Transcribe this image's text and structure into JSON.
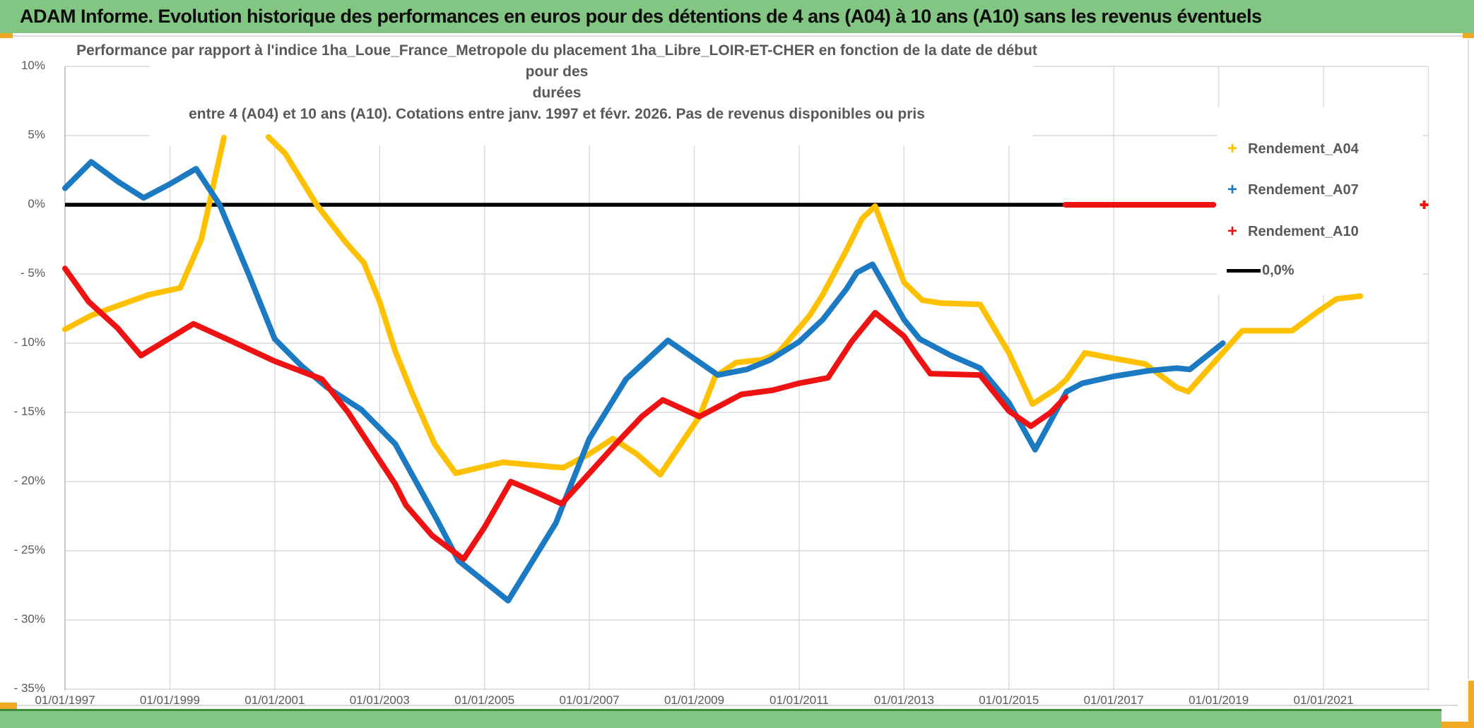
{
  "colors": {
    "green_bar": "#83C683",
    "green_bar_edge": "#3D8B3D",
    "gold_accent": "#EFA924",
    "grid": "#D9D9D9",
    "axis_text": "#595959",
    "zero_line": "#000000",
    "series_a04": "#FFC000",
    "series_a07": "#1B7AC1",
    "series_a10": "#EE1212"
  },
  "title_bar": {
    "text": "ADAM Informe. Evolution historique des performances en euros pour des détentions de 4 ans (A04) à 10 ans (A10) sans les revenus éventuels"
  },
  "chart_title": {
    "line1": "Performance par rapport à l'indice 1ha_Loue_France_Metropole  du placement 1ha_Libre_LOIR-ET-CHER en fonction de la date de début pour des",
    "line2": "durées",
    "line3": "entre 4 (A04) et 10 ans (A10). Cotations entre janv. 1997 et févr. 2026. Pas de revenus disponibles ou pris"
  },
  "legend": {
    "items": [
      {
        "label": "Rendement_A04",
        "color": "#FFC000",
        "marker": "+"
      },
      {
        "label": "Rendement_A07",
        "color": "#1B7AC1",
        "marker": "+"
      },
      {
        "label": "Rendement_A10",
        "color": "#EE1212",
        "marker": "+"
      },
      {
        "label": "0,0%",
        "color": "#000000",
        "marker": "line"
      }
    ]
  },
  "chart_data": {
    "type": "line",
    "title": "Performance par rapport à l'indice 1ha_Loue_France_Metropole du placement 1ha_Libre_LOIR-ET-CHER en fonction de la date de début pour des durées entre 4 (A04) et 10 ans (A10). Cotations entre janv. 1997 et févr. 2026. Pas de revenus disponibles ou pris",
    "xlabel": "",
    "ylabel": "",
    "grid": true,
    "legend_position": "inside-right",
    "xlim_years": [
      1997,
      2023
    ],
    "ylim_pct": [
      -35,
      10
    ],
    "x_tick_labels": [
      "01/01/1997",
      "01/01/1999",
      "01/01/2001",
      "01/01/2003",
      "01/01/2005",
      "01/01/2007",
      "01/01/2009",
      "01/01/2011",
      "01/01/2013",
      "01/01/2015",
      "01/01/2017",
      "01/01/2019",
      "01/01/2021"
    ],
    "x_tick_years": [
      1997,
      1999,
      2001,
      2003,
      2005,
      2007,
      2009,
      2011,
      2013,
      2015,
      2017,
      2019,
      2021
    ],
    "y_tick_labels": [
      "10%",
      "5%",
      "0%",
      "- 5%",
      "- 10%",
      "- 15%",
      "- 20%",
      "- 25%",
      "- 30%",
      "- 35%"
    ],
    "y_tick_values": [
      10,
      5,
      0,
      -5,
      -10,
      -15,
      -20,
      -25,
      -30,
      -35
    ],
    "zero_line": {
      "label": "0,0%",
      "value": 0.0,
      "start_year": 1997.0,
      "end_year": 2018.9
    },
    "series": [
      {
        "name": "Rendement_A04",
        "color": "#FFC000",
        "segments": [
          [
            [
              1997.0,
              -9.0
            ],
            [
              1997.5,
              -8.0
            ],
            [
              1998.0,
              -7.3
            ],
            [
              1998.6,
              -6.5
            ],
            [
              1999.2,
              -6.0
            ],
            [
              1999.6,
              -2.5
            ],
            [
              2000.03,
              4.85
            ]
          ],
          [
            [
              2000.88,
              4.9
            ],
            [
              2001.2,
              3.7
            ],
            [
              2001.8,
              0.0
            ],
            [
              2002.35,
              -2.7
            ],
            [
              2002.7,
              -4.2
            ],
            [
              2003.0,
              -7.0
            ],
            [
              2003.3,
              -10.6
            ],
            [
              2003.64,
              -13.8
            ],
            [
              2004.05,
              -17.3
            ],
            [
              2004.45,
              -19.4
            ],
            [
              2004.9,
              -19.0
            ],
            [
              2005.35,
              -18.6
            ],
            [
              2005.9,
              -18.8
            ],
            [
              2006.5,
              -19.0
            ],
            [
              2007.0,
              -18.0
            ],
            [
              2007.45,
              -16.9
            ],
            [
              2007.9,
              -18.0
            ],
            [
              2008.35,
              -19.5
            ],
            [
              2009.1,
              -15.3
            ],
            [
              2009.4,
              -12.4
            ],
            [
              2009.8,
              -11.4
            ],
            [
              2010.3,
              -11.2
            ],
            [
              2010.6,
              -10.7
            ],
            [
              2011.2,
              -8.0
            ],
            [
              2011.45,
              -6.5
            ],
            [
              2011.9,
              -3.3
            ],
            [
              2012.2,
              -1.0
            ],
            [
              2012.45,
              -0.1
            ],
            [
              2013.0,
              -5.6
            ],
            [
              2013.35,
              -6.9
            ],
            [
              2013.7,
              -7.1
            ],
            [
              2014.45,
              -7.2
            ],
            [
              2015.0,
              -10.7
            ],
            [
              2015.45,
              -14.4
            ],
            [
              2015.9,
              -13.3
            ],
            [
              2016.1,
              -12.6
            ],
            [
              2016.45,
              -10.7
            ],
            [
              2017.0,
              -11.1
            ],
            [
              2017.6,
              -11.5
            ],
            [
              2018.2,
              -13.2
            ],
            [
              2018.42,
              -13.5
            ],
            [
              2019.1,
              -10.6
            ],
            [
              2019.45,
              -9.1
            ],
            [
              2020.4,
              -9.1
            ],
            [
              2020.9,
              -7.7
            ],
            [
              2021.25,
              -6.8
            ],
            [
              2021.7,
              -6.6
            ]
          ]
        ]
      },
      {
        "name": "Rendement_A07",
        "color": "#1B7AC1",
        "segments": [
          [
            [
              1997.0,
              1.2
            ],
            [
              1997.5,
              3.1
            ],
            [
              1998.0,
              1.7
            ],
            [
              1998.5,
              0.5
            ],
            [
              1999.0,
              1.5
            ],
            [
              1999.5,
              2.6
            ],
            [
              1999.95,
              0.0
            ],
            [
              2000.5,
              -5.0
            ],
            [
              2001.0,
              -9.7
            ],
            [
              2001.5,
              -11.6
            ],
            [
              2002.0,
              -13.2
            ],
            [
              2002.65,
              -14.8
            ],
            [
              2003.3,
              -17.3
            ],
            [
              2004.1,
              -22.8
            ],
            [
              2004.5,
              -25.7
            ],
            [
              2005.45,
              -28.6
            ],
            [
              2006.36,
              -23.0
            ],
            [
              2007.0,
              -16.9
            ],
            [
              2007.7,
              -12.6
            ],
            [
              2008.5,
              -9.8
            ],
            [
              2009.45,
              -12.3
            ],
            [
              2010.0,
              -11.9
            ],
            [
              2010.45,
              -11.2
            ],
            [
              2011.0,
              -9.9
            ],
            [
              2011.45,
              -8.3
            ],
            [
              2011.9,
              -6.1
            ],
            [
              2012.1,
              -4.9
            ],
            [
              2012.4,
              -4.3
            ],
            [
              2013.0,
              -8.3
            ],
            [
              2013.3,
              -9.7
            ],
            [
              2013.9,
              -10.9
            ],
            [
              2014.45,
              -11.8
            ],
            [
              2015.0,
              -14.3
            ],
            [
              2015.5,
              -17.7
            ],
            [
              2016.1,
              -13.5
            ],
            [
              2016.4,
              -12.9
            ],
            [
              2017.0,
              -12.4
            ],
            [
              2017.65,
              -12.0
            ],
            [
              2018.2,
              -11.8
            ],
            [
              2018.45,
              -11.9
            ],
            [
              2019.08,
              -10.0
            ]
          ]
        ]
      },
      {
        "name": "Rendement_A10",
        "color": "#EE1212",
        "segments": [
          [
            [
              1997.0,
              -4.6
            ],
            [
              1997.45,
              -7.0
            ],
            [
              1998.0,
              -8.9
            ],
            [
              1998.45,
              -10.9
            ],
            [
              1999.45,
              -8.6
            ],
            [
              2000.2,
              -9.9
            ],
            [
              2001.0,
              -11.3
            ],
            [
              2001.9,
              -12.6
            ],
            [
              2002.4,
              -15.0
            ],
            [
              2003.3,
              -20.2
            ],
            [
              2003.5,
              -21.7
            ],
            [
              2004.0,
              -23.9
            ],
            [
              2004.6,
              -25.6
            ],
            [
              2005.0,
              -23.3
            ],
            [
              2005.5,
              -20.0
            ],
            [
              2006.0,
              -20.8
            ],
            [
              2006.47,
              -21.6
            ],
            [
              2007.0,
              -19.4
            ],
            [
              2007.5,
              -17.3
            ],
            [
              2008.0,
              -15.3
            ],
            [
              2008.4,
              -14.1
            ],
            [
              2009.1,
              -15.3
            ],
            [
              2009.9,
              -13.7
            ],
            [
              2010.5,
              -13.4
            ],
            [
              2011.0,
              -12.9
            ],
            [
              2011.55,
              -12.5
            ],
            [
              2012.0,
              -9.9
            ],
            [
              2012.45,
              -7.8
            ],
            [
              2013.0,
              -9.5
            ],
            [
              2013.25,
              -10.9
            ],
            [
              2013.5,
              -12.2
            ],
            [
              2014.45,
              -12.3
            ],
            [
              2015.0,
              -14.9
            ],
            [
              2015.42,
              -16.0
            ],
            [
              2015.8,
              -15.0
            ],
            [
              2016.08,
              -13.9
            ]
          ],
          [
            [
              2016.08,
              0.0
            ],
            [
              2018.9,
              0.0
            ]
          ]
        ],
        "isolated_point": [
          2022.92,
          0.0
        ]
      }
    ]
  }
}
